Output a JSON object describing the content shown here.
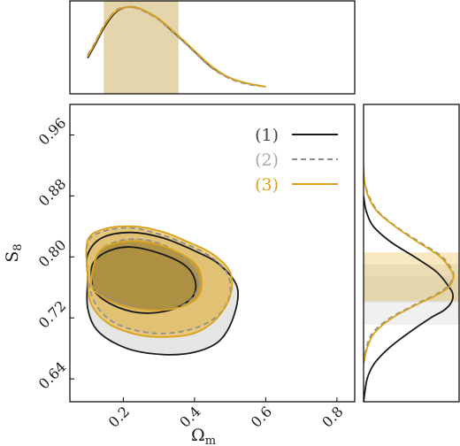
{
  "chart_data": {
    "type": "contour",
    "xlabel": "Ω",
    "xlabel_sub": "m",
    "ylabel": "S",
    "ylabel_sub": "8",
    "xlim": [
      0.05,
      0.85
    ],
    "ylim": [
      0.61,
      1.0
    ],
    "xticks": [
      0.2,
      0.4,
      0.6,
      0.8
    ],
    "xtick_labels": [
      "0.2",
      "0.4",
      "0.6",
      "0.8"
    ],
    "yticks": [
      0.64,
      0.72,
      0.8,
      0.88,
      0.96
    ],
    "ytick_labels": [
      "0.64",
      "0.72",
      "0.80",
      "0.88",
      "0.96"
    ],
    "legend_position": "top-right",
    "series": [
      {
        "name": "(1)",
        "color": "#1a1a1a",
        "text_color": "#444444",
        "dash": "solid",
        "fill_outer": "#d0d0d0",
        "fill_inner": "#707070",
        "contour_68": [
          [
            0.11,
            0.78
          ],
          [
            0.12,
            0.795
          ],
          [
            0.16,
            0.808
          ],
          [
            0.22,
            0.813
          ],
          [
            0.3,
            0.805
          ],
          [
            0.37,
            0.79
          ],
          [
            0.4,
            0.772
          ],
          [
            0.4,
            0.752
          ],
          [
            0.37,
            0.738
          ],
          [
            0.31,
            0.728
          ],
          [
            0.24,
            0.727
          ],
          [
            0.17,
            0.737
          ],
          [
            0.12,
            0.755
          ]
        ],
        "contour_95": [
          [
            0.1,
            0.773
          ],
          [
            0.1,
            0.803
          ],
          [
            0.14,
            0.825
          ],
          [
            0.22,
            0.832
          ],
          [
            0.31,
            0.825
          ],
          [
            0.4,
            0.808
          ],
          [
            0.47,
            0.79
          ],
          [
            0.52,
            0.76
          ],
          [
            0.51,
            0.722
          ],
          [
            0.47,
            0.69
          ],
          [
            0.4,
            0.675
          ],
          [
            0.31,
            0.672
          ],
          [
            0.21,
            0.68
          ],
          [
            0.13,
            0.702
          ],
          [
            0.1,
            0.733
          ]
        ],
        "marginal_x": {
          "x": [
            0.1,
            0.12,
            0.15,
            0.18,
            0.21,
            0.24,
            0.27,
            0.3,
            0.33,
            0.37,
            0.41,
            0.45,
            0.5,
            0.55,
            0.6
          ],
          "y": [
            0.36,
            0.52,
            0.77,
            0.94,
            1.0,
            0.99,
            0.93,
            0.85,
            0.73,
            0.57,
            0.4,
            0.24,
            0.11,
            0.04,
            0.0
          ]
        },
        "marginal_y": {
          "y": [
            0.61,
            0.64,
            0.66,
            0.68,
            0.7,
            0.72,
            0.73,
            0.74,
            0.75,
            0.76,
            0.78,
            0.8,
            0.82,
            0.84,
            0.86,
            0.88
          ],
          "w": [
            0.0,
            0.04,
            0.12,
            0.28,
            0.5,
            0.75,
            0.9,
            0.98,
            1.0,
            0.96,
            0.82,
            0.57,
            0.3,
            0.11,
            0.03,
            0.0
          ]
        },
        "band_x": [
          0.145,
          0.355
        ],
        "band_y": [
          0.711,
          0.775
        ]
      },
      {
        "name": "(2)",
        "color": "#909090",
        "text_color": "#a8a8a8",
        "dash": "dashed",
        "fill_outer": "#c8c8c8",
        "fill_inner": "#787878",
        "contour_68": [
          [
            0.11,
            0.77
          ],
          [
            0.13,
            0.805
          ],
          [
            0.18,
            0.82
          ],
          [
            0.25,
            0.823
          ],
          [
            0.32,
            0.814
          ],
          [
            0.38,
            0.795
          ],
          [
            0.41,
            0.772
          ],
          [
            0.4,
            0.75
          ],
          [
            0.36,
            0.735
          ],
          [
            0.29,
            0.73
          ],
          [
            0.21,
            0.737
          ],
          [
            0.15,
            0.748
          ],
          [
            0.12,
            0.758
          ]
        ],
        "contour_95": [
          [
            0.1,
            0.776
          ],
          [
            0.1,
            0.818
          ],
          [
            0.14,
            0.833
          ],
          [
            0.22,
            0.838
          ],
          [
            0.3,
            0.83
          ],
          [
            0.37,
            0.818
          ],
          [
            0.44,
            0.802
          ],
          [
            0.49,
            0.78
          ],
          [
            0.5,
            0.752
          ],
          [
            0.47,
            0.725
          ],
          [
            0.41,
            0.708
          ],
          [
            0.33,
            0.7
          ],
          [
            0.25,
            0.702
          ],
          [
            0.17,
            0.715
          ],
          [
            0.12,
            0.74
          ]
        ],
        "marginal_x": {
          "x": [
            0.1,
            0.12,
            0.15,
            0.18,
            0.21,
            0.24,
            0.27,
            0.3,
            0.33,
            0.37,
            0.41,
            0.45,
            0.5,
            0.55,
            0.6
          ],
          "y": [
            0.4,
            0.55,
            0.8,
            0.96,
            1.0,
            0.98,
            0.92,
            0.84,
            0.72,
            0.56,
            0.39,
            0.23,
            0.1,
            0.03,
            0.0
          ]
        },
        "marginal_y": {
          "y": [
            0.66,
            0.68,
            0.7,
            0.72,
            0.74,
            0.75,
            0.76,
            0.77,
            0.78,
            0.8,
            0.82,
            0.84,
            0.86,
            0.88,
            0.9,
            0.92
          ],
          "w": [
            0.0,
            0.03,
            0.1,
            0.3,
            0.62,
            0.8,
            0.93,
            0.99,
            1.0,
            0.88,
            0.62,
            0.36,
            0.16,
            0.06,
            0.01,
            0.0
          ]
        },
        "band_x": [
          0.145,
          0.355
        ],
        "band_y": [
          0.74,
          0.79
        ]
      },
      {
        "name": "(3)",
        "color": "#d9a21c",
        "text_color": "#d9a21c",
        "dash": "solid",
        "fill_outer": "#e8b73a",
        "fill_inner": "#8a6d1f",
        "contour_68": [
          [
            0.11,
            0.765
          ],
          [
            0.13,
            0.805
          ],
          [
            0.18,
            0.818
          ],
          [
            0.25,
            0.82
          ],
          [
            0.33,
            0.811
          ],
          [
            0.4,
            0.792
          ],
          [
            0.42,
            0.77
          ],
          [
            0.41,
            0.748
          ],
          [
            0.36,
            0.734
          ],
          [
            0.28,
            0.73
          ],
          [
            0.2,
            0.736
          ],
          [
            0.14,
            0.748
          ]
        ],
        "contour_95": [
          [
            0.1,
            0.775
          ],
          [
            0.1,
            0.822
          ],
          [
            0.15,
            0.837
          ],
          [
            0.23,
            0.84
          ],
          [
            0.31,
            0.833
          ],
          [
            0.38,
            0.82
          ],
          [
            0.45,
            0.804
          ],
          [
            0.5,
            0.78
          ],
          [
            0.5,
            0.748
          ],
          [
            0.46,
            0.718
          ],
          [
            0.4,
            0.7
          ],
          [
            0.32,
            0.695
          ],
          [
            0.24,
            0.698
          ],
          [
            0.16,
            0.712
          ],
          [
            0.11,
            0.738
          ]
        ],
        "marginal_x": {
          "x": [
            0.1,
            0.12,
            0.15,
            0.18,
            0.21,
            0.24,
            0.27,
            0.3,
            0.33,
            0.37,
            0.41,
            0.45,
            0.5,
            0.55,
            0.6
          ],
          "y": [
            0.38,
            0.54,
            0.79,
            0.95,
            1.0,
            0.99,
            0.93,
            0.85,
            0.74,
            0.58,
            0.41,
            0.25,
            0.11,
            0.04,
            0.0
          ]
        },
        "marginal_y": {
          "y": [
            0.66,
            0.68,
            0.7,
            0.72,
            0.74,
            0.75,
            0.76,
            0.77,
            0.78,
            0.8,
            0.82,
            0.84,
            0.86,
            0.88,
            0.9,
            0.92
          ],
          "w": [
            0.0,
            0.04,
            0.12,
            0.32,
            0.64,
            0.82,
            0.95,
            1.0,
            0.99,
            0.86,
            0.6,
            0.35,
            0.15,
            0.05,
            0.01,
            0.0
          ]
        },
        "band_x": [
          0.145,
          0.355
        ],
        "band_y": [
          0.742,
          0.806
        ]
      }
    ]
  }
}
